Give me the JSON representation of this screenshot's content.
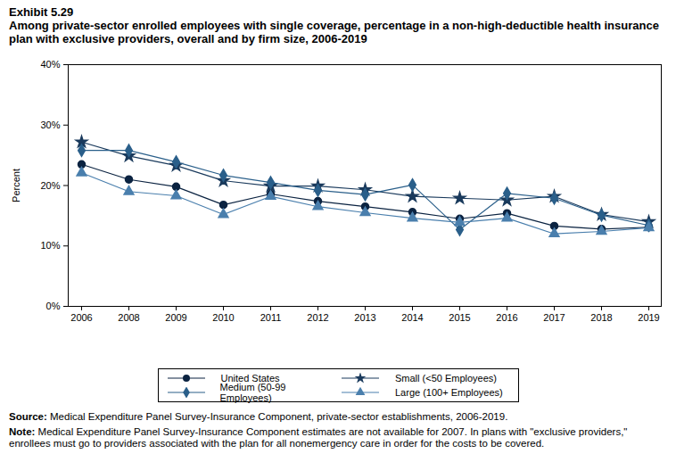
{
  "chart_data": {
    "type": "line",
    "title": "Exhibit 5.29",
    "subtitle": "Among private-sector enrolled employees with single coverage, percentage in a non-high-deductible health insurance plan with exclusive providers, overall and by firm size, 2006-2019",
    "y_label": "Percent",
    "categories": [
      "2006",
      "2008",
      "2009",
      "2010",
      "2011",
      "2012",
      "2013",
      "2014",
      "2015",
      "2016",
      "2017",
      "2018",
      "2019"
    ],
    "series": [
      {
        "name": "United States",
        "color": "#0b2341",
        "marker": "circle",
        "values": [
          23.5,
          21.0,
          19.8,
          16.8,
          18.6,
          17.4,
          16.5,
          15.6,
          14.5,
          15.4,
          13.3,
          12.8,
          13.1
        ]
      },
      {
        "name": "Small (<50 Employees)",
        "color": "#1a3a5c",
        "marker": "star",
        "values": [
          27.2,
          24.9,
          23.3,
          20.8,
          19.9,
          19.9,
          19.3,
          18.2,
          17.9,
          17.6,
          18.2,
          15.2,
          14.0
        ]
      },
      {
        "name": "Medium (50-99 Employees)",
        "color": "#2a5f8a",
        "marker": "diamond",
        "values": [
          25.8,
          25.8,
          23.9,
          21.7,
          20.5,
          19.2,
          18.5,
          20.1,
          12.7,
          18.7,
          17.9,
          15.1,
          13.4
        ]
      },
      {
        "name": "Large (100+ Employees)",
        "color": "#4a7fad",
        "marker": "triangle",
        "values": [
          22.1,
          19.0,
          18.3,
          15.2,
          18.2,
          16.5,
          15.5,
          14.6,
          13.9,
          14.6,
          12.0,
          12.4,
          13.0
        ]
      }
    ],
    "ylim": [
      0,
      40
    ],
    "yticks": [
      {
        "value": 0,
        "label": "0%"
      },
      {
        "value": 10,
        "label": "10%"
      },
      {
        "value": 20,
        "label": "20%"
      },
      {
        "value": 30,
        "label": "30%"
      },
      {
        "value": 40,
        "label": "40%"
      }
    ],
    "grid": false,
    "legend": "bottom",
    "annotations": [
      {
        "label": "Source:",
        "text": "Medical Expenditure Panel Survey-Insurance Component, private-sector establishments, 2006-2019."
      },
      {
        "label": "Note:",
        "text": "Medical Expenditure Panel Survey-Insurance Component estimates are not available for 2007. In plans with \"exclusive providers,\" enrollees must go to providers associated with the plan for all nonemergency care in order for the costs to be covered."
      }
    ]
  }
}
